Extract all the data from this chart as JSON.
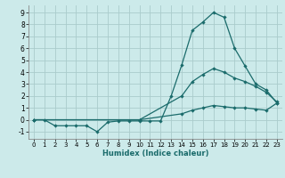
{
  "xlabel": "Humidex (Indice chaleur)",
  "background_color": "#cceaea",
  "grid_color": "#aacccc",
  "line_color": "#1a6b6b",
  "xlim": [
    -0.5,
    23.5
  ],
  "ylim": [
    -1.6,
    9.6
  ],
  "xticks": [
    0,
    1,
    2,
    3,
    4,
    5,
    6,
    7,
    8,
    9,
    10,
    11,
    12,
    13,
    14,
    15,
    16,
    17,
    18,
    19,
    20,
    21,
    22,
    23
  ],
  "yticks": [
    -1,
    0,
    1,
    2,
    3,
    4,
    5,
    6,
    7,
    8,
    9
  ],
  "line1_x": [
    0,
    1,
    2,
    3,
    4,
    5,
    6,
    7,
    8,
    9,
    10,
    11,
    12,
    13,
    14,
    15,
    16,
    17,
    18,
    19,
    20,
    21,
    22,
    23
  ],
  "line1_y": [
    0.0,
    0.0,
    -0.5,
    -0.5,
    -0.5,
    -0.5,
    -1.0,
    -0.2,
    -0.1,
    -0.1,
    -0.1,
    -0.1,
    -0.1,
    2.0,
    4.6,
    7.5,
    8.2,
    9.0,
    8.6,
    6.0,
    4.5,
    3.0,
    2.5,
    1.4
  ],
  "line2_x": [
    0,
    10,
    14,
    15,
    16,
    17,
    18,
    19,
    20,
    21,
    22,
    23
  ],
  "line2_y": [
    0.0,
    0.0,
    2.0,
    3.2,
    3.8,
    4.3,
    4.0,
    3.5,
    3.2,
    2.8,
    2.3,
    1.5
  ],
  "line3_x": [
    0,
    10,
    14,
    15,
    16,
    17,
    18,
    19,
    20,
    21,
    22,
    23
  ],
  "line3_y": [
    0.0,
    0.0,
    0.5,
    0.8,
    1.0,
    1.2,
    1.1,
    1.0,
    1.0,
    0.9,
    0.8,
    1.4
  ]
}
